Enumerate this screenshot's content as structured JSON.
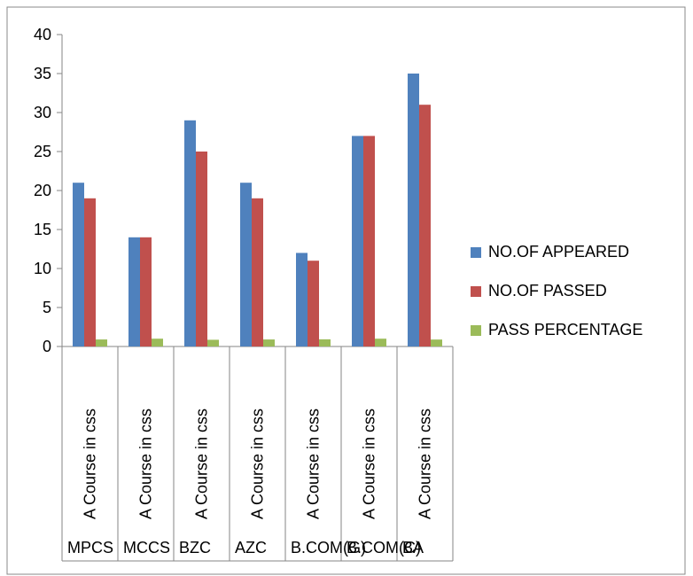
{
  "chart_data": {
    "type": "bar",
    "categories": [
      {
        "group": "MPCS",
        "label": "A Course in    css"
      },
      {
        "group": "MCCS",
        "label": "A Course in css"
      },
      {
        "group": "BZC",
        "label": "A Course in css"
      },
      {
        "group": "AZC",
        "label": "A Course in css"
      },
      {
        "group": "B.COM(G)",
        "label": "A Course in css"
      },
      {
        "group": "B.COM(C)",
        "label": "A Course in css"
      },
      {
        "group": "BA",
        "label": "A Course in css"
      }
    ],
    "series": [
      {
        "name": "NO.OF APPEARED",
        "color": "#4F81BD",
        "values": [
          21,
          14,
          29,
          21,
          12,
          27,
          35
        ]
      },
      {
        "name": "NO.OF PASSED",
        "color": "#C0504D",
        "values": [
          19,
          14,
          25,
          19,
          11,
          27,
          31
        ]
      },
      {
        "name": "PASS PERCENTAGE",
        "color": "#9BBB59",
        "values": [
          0.9,
          1.0,
          0.86,
          0.9,
          0.92,
          1.0,
          0.89
        ]
      }
    ],
    "yticks": [
      0,
      5,
      10,
      15,
      20,
      25,
      30,
      35,
      40
    ],
    "ylim": [
      0,
      40
    ],
    "grid": false,
    "legend": "right"
  }
}
